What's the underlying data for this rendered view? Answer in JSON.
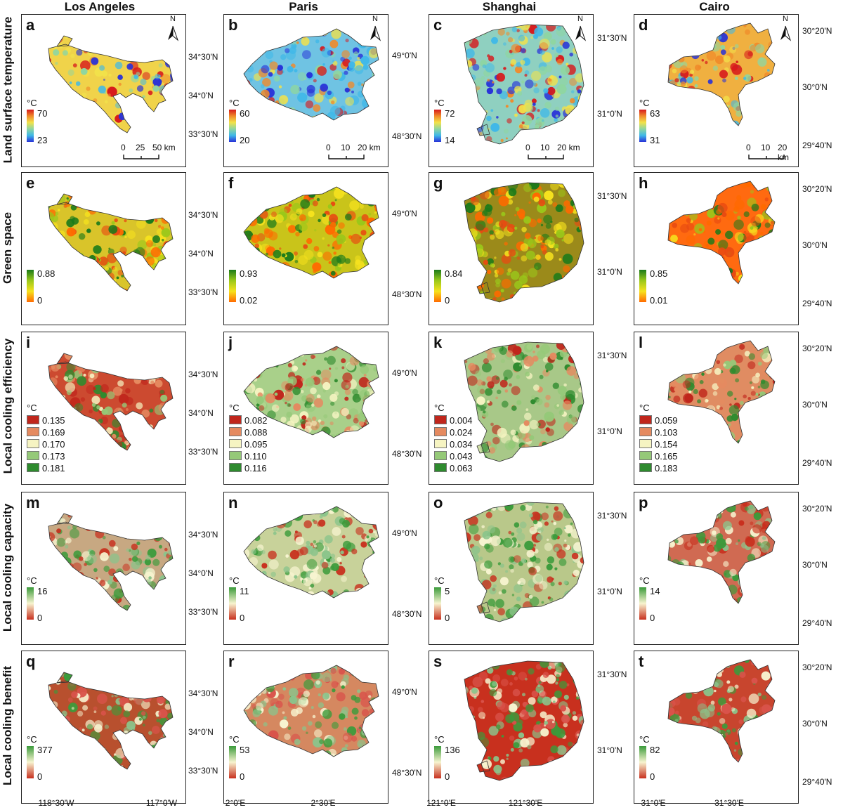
{
  "columns": [
    "Los Angeles",
    "Paris",
    "Shanghai",
    "Cairo"
  ],
  "rows": [
    "Land surface temperature",
    "Green space",
    "Local cooling efficiency",
    "Local cooling capacity",
    "Local cooling benefit"
  ],
  "panel_letters": [
    [
      "a",
      "b",
      "c",
      "d"
    ],
    [
      "e",
      "f",
      "g",
      "h"
    ],
    [
      "i",
      "j",
      "k",
      "l"
    ],
    [
      "m",
      "n",
      "o",
      "p"
    ],
    [
      "q",
      "r",
      "s",
      "t"
    ]
  ],
  "north_label": "N",
  "unit": "°C",
  "lat_labels": [
    [
      "34°30'N",
      "34°0'N",
      "33°30'N"
    ],
    [
      "49°0'N",
      "48°30'N"
    ],
    [
      "31°30'N",
      "31°0'N"
    ],
    [
      "30°20'N",
      "30°0'N",
      "29°40'N"
    ]
  ],
  "lon_labels": [
    [
      "118°30'W",
      "117°0'W"
    ],
    [
      "2°0'E",
      "2°30'E"
    ],
    [
      "121°0'E",
      "121°30'E"
    ],
    [
      "31°0'E",
      "31°30'E"
    ]
  ],
  "scale_bars": [
    [
      "0",
      "25",
      "50 km"
    ],
    [
      "0",
      "10",
      "20 km"
    ],
    [
      "0",
      "10",
      "20 km"
    ],
    [
      "0",
      "10",
      "20 km"
    ]
  ],
  "lst_range": [
    [
      "70",
      "23"
    ],
    [
      "60",
      "20"
    ],
    [
      "72",
      "14"
    ],
    [
      "63",
      "31"
    ]
  ],
  "green_range": [
    [
      "0.88",
      "0"
    ],
    [
      "0.93",
      "0.02"
    ],
    [
      "0.84",
      "0"
    ],
    [
      "0.85",
      "0.01"
    ]
  ],
  "efficiency_classes": [
    [
      "0.135",
      "0.169",
      "0.170",
      "0.173",
      "0.181"
    ],
    [
      "0.082",
      "0.088",
      "0.095",
      "0.110",
      "0.116"
    ],
    [
      "0.004",
      "0.024",
      "0.034",
      "0.043",
      "0.063"
    ],
    [
      "0.059",
      "0.103",
      "0.154",
      "0.165",
      "0.183"
    ]
  ],
  "capacity_range": [
    [
      "16",
      "0"
    ],
    [
      "11",
      "0"
    ],
    [
      "5",
      "0"
    ],
    [
      "14",
      "0"
    ]
  ],
  "benefit_range": [
    [
      "377",
      "0"
    ],
    [
      "53",
      "0"
    ],
    [
      "136",
      "0"
    ],
    [
      "82",
      "0"
    ]
  ],
  "colors": {
    "lst_ramp": [
      "#2832d8",
      "#3fb8e8",
      "#8fd6a0",
      "#f2e24a",
      "#f08a2a",
      "#d7191c"
    ],
    "green_ramp": [
      "#1a7a1a",
      "#9ac81a",
      "#f6e21e",
      "#ff6a00"
    ],
    "efficiency_classes": [
      "#c0261c",
      "#e58a60",
      "#f6f4c2",
      "#95c978",
      "#2e8b2e"
    ],
    "cooling_ramp": [
      "#3b9b3b",
      "#f7f4d0",
      "#c8301e"
    ]
  }
}
